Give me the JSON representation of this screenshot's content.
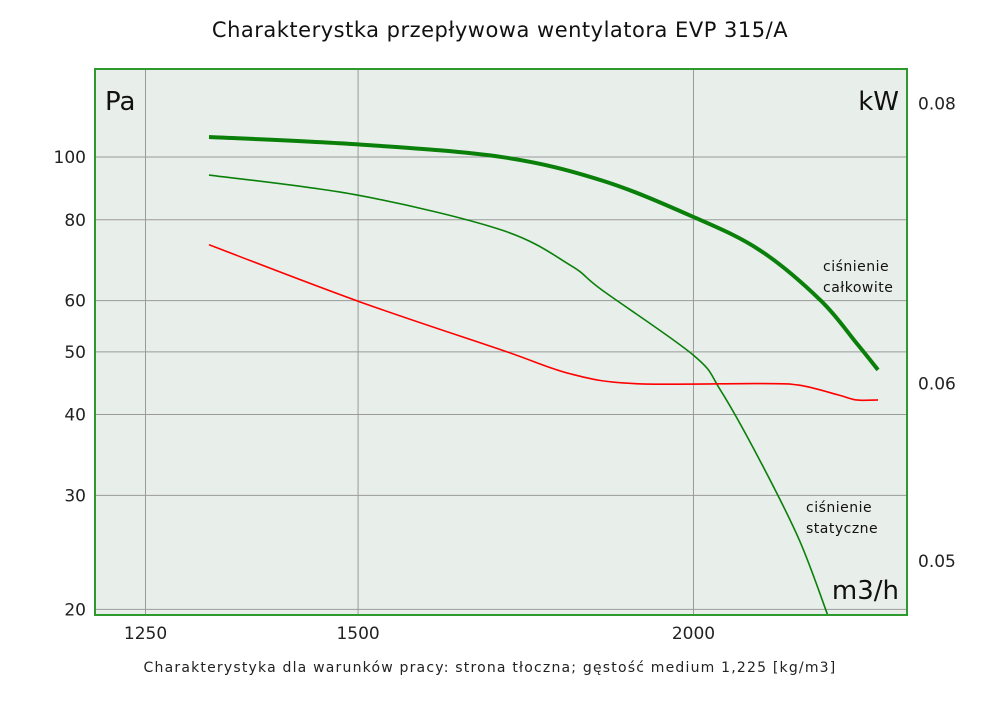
{
  "chart_data": {
    "type": "line",
    "title": "Charakterystka przepływowa wentylatora EVP 315/A",
    "footnote": "Charakterystyka dla warunków pracy: strona tłoczna; gęstość medium 1,225 [kg/m3]",
    "xlabel": "m3/h",
    "ylabel": "Pa",
    "y2label": "kW",
    "xscale": "log",
    "yscale": "log",
    "y2scale": "log",
    "xlim": [
      1197,
      2402
    ],
    "ylim": [
      19.6,
      136.8
    ],
    "y2lim": [
      0.0473,
      0.0829
    ],
    "xticks": [
      "1250",
      "1500",
      "2000"
    ],
    "yticks": [
      "100",
      "80",
      "60",
      "50",
      "40",
      "30",
      "20"
    ],
    "y2ticks": [
      "0.08",
      "0.06",
      "0.05"
    ],
    "grid": true,
    "colors": {
      "plot_bg": "#e8eeea",
      "border": "#2e9a2e",
      "grid": "#9a9a9a",
      "pressure": "#0a800a",
      "power": "#ff0000"
    },
    "series": [
      {
        "name": "ciśnienie całkowite",
        "axis": "left",
        "color": "#0a800a",
        "x": [
          1320,
          1500,
          1697,
          1849,
          2000,
          2117,
          2230,
          2300,
          2343
        ],
        "y": [
          107.4,
          104.6,
          100.0,
          92.0,
          80.8,
          71.8,
          60.1,
          51.6,
          46.9
        ]
      },
      {
        "name": "ciśnienie statyczne",
        "axis": "left",
        "color": "#0a800a",
        "x": [
          1320,
          1500,
          1697,
          1800,
          1849,
          2000,
          2047,
          2117,
          2190,
          2244
        ],
        "y": [
          93.8,
          87.3,
          77.1,
          68.0,
          62.3,
          49.4,
          43.6,
          34.0,
          25.6,
          19.6
        ]
      },
      {
        "axis": "right",
        "color": "#ff0000",
        "x": [
          1320,
          1500,
          1697,
          1800,
          1900,
          2117,
          2190,
          2265,
          2300,
          2343
        ],
        "y": [
          0.0692,
          0.0653,
          0.0621,
          0.0606,
          0.06,
          0.06,
          0.0599,
          0.0593,
          0.059,
          0.059
        ]
      }
    ]
  }
}
